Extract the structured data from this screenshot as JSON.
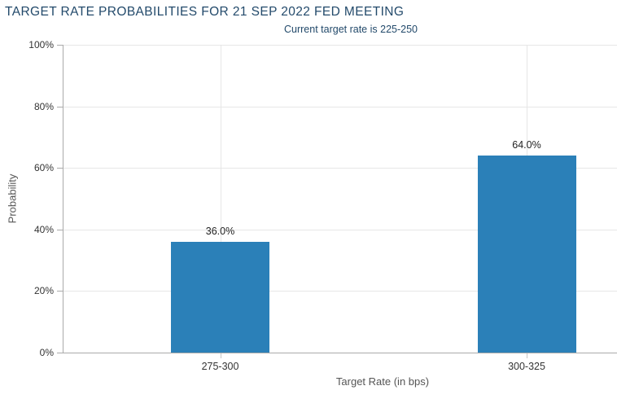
{
  "header": {
    "title": "TARGET RATE PROBABILITIES FOR 21 SEP 2022 FED MEETING",
    "subtitle": "Current target rate is 225-250"
  },
  "chart_data": {
    "type": "bar",
    "title": "TARGET RATE PROBABILITIES FOR 21 SEP 2022 FED MEETING",
    "subtitle": "Current target rate is 225-250",
    "categories": [
      "275-300",
      "300-325"
    ],
    "values": [
      36.0,
      64.0
    ],
    "value_labels": [
      "36.0%",
      "64.0%"
    ],
    "xlabel": "Target Rate (in bps)",
    "ylabel": "Probability",
    "ylim": [
      0,
      100
    ],
    "ytick_step": 20,
    "ytick_labels": [
      "0%",
      "20%",
      "40%",
      "60%",
      "80%",
      "100%"
    ],
    "legend": "none",
    "grid": true,
    "colors": {
      "bar": "#2b80b8",
      "title_text": "#234a6b",
      "tick_label": "#333333",
      "axis_title": "#555555",
      "value_label": "#222222",
      "gridline": "#e6e6e6",
      "axis_line": "#aaaaaa",
      "background": "#ffffff"
    }
  }
}
